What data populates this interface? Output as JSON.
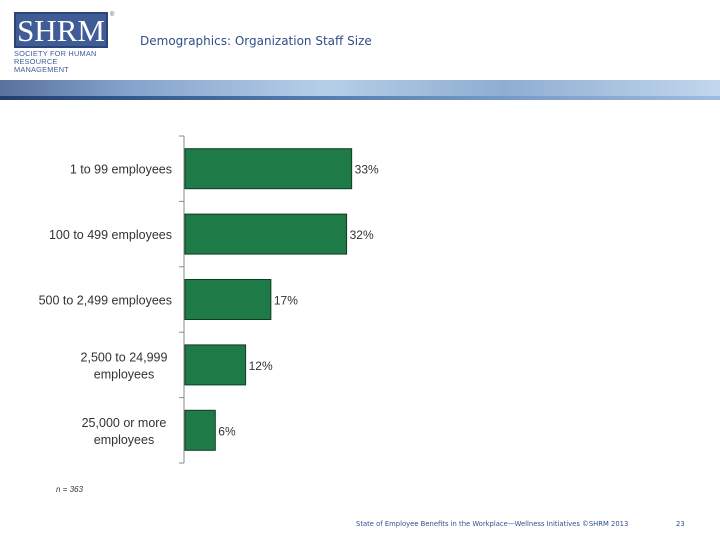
{
  "header": {
    "logo_mark": "SHRM",
    "logo_registered": "®",
    "logo_tagline_lines": [
      "SOCIETY FOR HUMAN",
      "RESOURCE MANAGEMENT"
    ],
    "title": "Demographics: Organization Staff Size"
  },
  "chart_data": {
    "type": "bar",
    "orientation": "horizontal",
    "categories": [
      [
        "1 to 99 employees"
      ],
      [
        "100 to 499 employees"
      ],
      [
        "500 to 2,499 employees"
      ],
      [
        "2,500 to 24,999",
        "employees"
      ],
      [
        "25,000 or more",
        "employees"
      ]
    ],
    "values": [
      33,
      32,
      17,
      12,
      6
    ],
    "value_labels": [
      "33%",
      "32%",
      "17%",
      "12%",
      "6%"
    ],
    "bar_color": "#1e7a46",
    "bar_edge_color": "#0f3d22",
    "xlim": [
      0,
      100
    ],
    "note": "n = 363"
  },
  "footer": {
    "source": "State of Employee Benefits in the Workplace—Wellness Initiatives ©SHRM 2013",
    "page": "23"
  }
}
